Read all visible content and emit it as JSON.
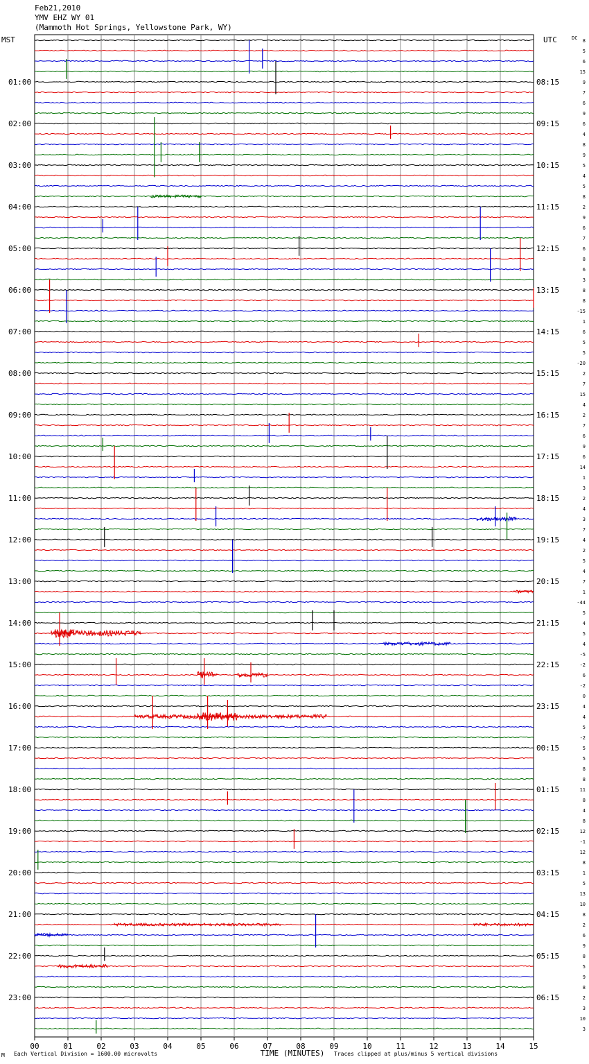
{
  "header": {
    "date": "Feb21,2010",
    "station": "YMV EHZ WY 01",
    "location": "(Mammoth Hot Springs, Yellowstone Park, WY)"
  },
  "colors": {
    "trace_cycle": [
      "#000000",
      "#e00000",
      "#0000d0",
      "#007000"
    ],
    "grid": "#8f8f8f"
  },
  "chart_data": {
    "type": "line",
    "title": "",
    "xlabel": "TIME (MINUTES)",
    "x_ticks": [
      "00",
      "01",
      "02",
      "03",
      "04",
      "05",
      "06",
      "07",
      "08",
      "09",
      "10",
      "11",
      "12",
      "13",
      "14",
      "15"
    ],
    "xlim": [
      0,
      15
    ],
    "left_axis_title": "MST",
    "right_axis_title": "UTC",
    "right_column_title": "DC",
    "left_hour_labels": [
      "01:00",
      "02:00",
      "03:00",
      "04:00",
      "05:00",
      "06:00",
      "07:00",
      "08:00",
      "09:00",
      "10:00",
      "11:00",
      "12:00",
      "13:00",
      "14:00",
      "15:00",
      "16:00",
      "17:00",
      "18:00",
      "19:00",
      "20:00",
      "21:00",
      "22:00",
      "23:00"
    ],
    "right_hour_labels": [
      "08:15",
      "09:15",
      "10:15",
      "11:15",
      "12:15",
      "13:15",
      "14:15",
      "15:15",
      "16:15",
      "17:15",
      "18:15",
      "19:15",
      "20:15",
      "21:15",
      "22:15",
      "23:15",
      "00:15",
      "01:15",
      "02:15",
      "03:15",
      "04:15",
      "05:15",
      "06:15"
    ],
    "dc_offsets": [
      "8",
      "5",
      "6",
      "15",
      "9",
      "7",
      "6",
      "9",
      "6",
      "4",
      "8",
      "9",
      "5",
      "4",
      "5",
      "8",
      "2",
      "9",
      "6",
      "7",
      "6",
      "8",
      "6",
      "3",
      "8",
      "8",
      "-15",
      "1",
      "6",
      "5",
      "5",
      "-20",
      "2",
      "7",
      "15",
      "4",
      "2",
      "7",
      "6",
      "9",
      "6",
      "14",
      "1",
      "3",
      "2",
      "4",
      "3",
      "7",
      "4",
      "2",
      "5",
      "4",
      "7",
      "1",
      "-44",
      "5",
      "4",
      "5",
      "4",
      "-5",
      "-2",
      "6",
      "-2",
      "0",
      "4",
      "4",
      "5",
      "-2",
      "5",
      "5",
      "8",
      "8",
      "11",
      "8",
      "4",
      "8",
      "12",
      "-1",
      "12",
      "8",
      "1",
      "5",
      "13",
      "10",
      "8",
      "2",
      "6",
      "9",
      "8",
      "5",
      "9",
      "8",
      "2",
      "3",
      "10",
      "3"
    ],
    "traces": 96,
    "minutes_per_trace": 15,
    "events": [
      {
        "row": 2,
        "minute": 6.85,
        "amp": 3
      },
      {
        "row": 3,
        "minute": 0.95,
        "amp": 3
      },
      {
        "row": 2,
        "minute": 6.45,
        "amp": 5
      },
      {
        "row": 4,
        "minute": 7.25,
        "amp": 5
      },
      {
        "row": 9,
        "minute": 10.7,
        "amp": 2
      },
      {
        "row": 11,
        "minute": 3.6,
        "amp": 9
      },
      {
        "row": 11,
        "minute": 3.8,
        "amp": 3
      },
      {
        "row": 11,
        "minute": 4.95,
        "amp": 3
      },
      {
        "row": 18,
        "minute": 2.05,
        "amp": 2
      },
      {
        "row": 18,
        "minute": 3.1,
        "amp": 5
      },
      {
        "row": 18,
        "minute": 13.4,
        "amp": 5
      },
      {
        "row": 20,
        "minute": 7.95,
        "amp": 3
      },
      {
        "row": 21,
        "minute": 4.0,
        "amp": 3
      },
      {
        "row": 21,
        "minute": 14.6,
        "amp": 5
      },
      {
        "row": 22,
        "minute": 3.65,
        "amp": 3
      },
      {
        "row": 22,
        "minute": 13.7,
        "amp": 5
      },
      {
        "row": 25,
        "minute": 0.45,
        "amp": 5
      },
      {
        "row": 25,
        "minute": 15.0,
        "amp": 3
      },
      {
        "row": 26,
        "minute": 0.95,
        "amp": 5
      },
      {
        "row": 29,
        "minute": 11.55,
        "amp": 2
      },
      {
        "row": 37,
        "minute": 7.65,
        "amp": 3
      },
      {
        "row": 38,
        "minute": 7.05,
        "amp": 3
      },
      {
        "row": 38,
        "minute": 10.1,
        "amp": 2
      },
      {
        "row": 39,
        "minute": 2.05,
        "amp": 2
      },
      {
        "row": 40,
        "minute": 10.6,
        "amp": 5
      },
      {
        "row": 41,
        "minute": 2.4,
        "amp": 5
      },
      {
        "row": 42,
        "minute": 4.8,
        "amp": 2
      },
      {
        "row": 44,
        "minute": 6.45,
        "amp": 3
      },
      {
        "row": 45,
        "minute": 10.6,
        "amp": 5
      },
      {
        "row": 45,
        "minute": 4.85,
        "amp": 5
      },
      {
        "row": 46,
        "minute": 5.45,
        "amp": 3
      },
      {
        "row": 46,
        "minute": 13.85,
        "amp": 3
      },
      {
        "row": 47,
        "minute": 14.2,
        "amp": 4
      },
      {
        "row": 48,
        "minute": 2.1,
        "amp": 3
      },
      {
        "row": 48,
        "minute": 11.95,
        "amp": 3
      },
      {
        "row": 50,
        "minute": 5.95,
        "amp": 5
      },
      {
        "row": 56,
        "minute": 8.35,
        "amp": 3
      },
      {
        "row": 56,
        "minute": 9.0,
        "amp": 3
      },
      {
        "row": 57,
        "minute": 0.75,
        "amp": 5
      },
      {
        "row": 61,
        "minute": 2.45,
        "amp": 4
      },
      {
        "row": 61,
        "minute": 5.1,
        "amp": 4
      },
      {
        "row": 61,
        "minute": 6.5,
        "amp": 3
      },
      {
        "row": 65,
        "minute": 5.2,
        "amp": 5
      },
      {
        "row": 65,
        "minute": 5.8,
        "amp": 4
      },
      {
        "row": 65,
        "minute": 3.55,
        "amp": 5
      },
      {
        "row": 73,
        "minute": 5.8,
        "amp": 2
      },
      {
        "row": 74,
        "minute": 9.6,
        "amp": 5
      },
      {
        "row": 75,
        "minute": 12.95,
        "amp": 5
      },
      {
        "row": 73,
        "minute": 13.85,
        "amp": 4
      },
      {
        "row": 77,
        "minute": 7.8,
        "amp": 3
      },
      {
        "row": 79,
        "minute": 0.1,
        "amp": 3
      },
      {
        "row": 86,
        "minute": 8.45,
        "amp": 5
      },
      {
        "row": 88,
        "minute": 2.1,
        "amp": 2
      },
      {
        "row": 95,
        "minute": 1.85,
        "amp": 2
      }
    ],
    "noise_bursts": [
      {
        "row": 57,
        "start": 0.5,
        "end": 3.2,
        "amp": 1.0
      },
      {
        "row": 57,
        "start": 0.6,
        "end": 1.2,
        "amp": 1.6
      },
      {
        "row": 61,
        "start": 4.9,
        "end": 5.5,
        "amp": 1.2
      },
      {
        "row": 61,
        "start": 6.1,
        "end": 7.0,
        "amp": 0.8
      },
      {
        "row": 65,
        "start": 3.0,
        "end": 8.8,
        "amp": 0.7
      },
      {
        "row": 65,
        "start": 4.9,
        "end": 6.1,
        "amp": 1.5
      },
      {
        "row": 58,
        "start": 10.5,
        "end": 12.5,
        "amp": 0.6
      },
      {
        "row": 53,
        "start": 14.4,
        "end": 15,
        "amp": 0.5
      },
      {
        "row": 85,
        "start": 2.4,
        "end": 7.4,
        "amp": 0.5
      },
      {
        "row": 85,
        "start": 13.2,
        "end": 15,
        "amp": 0.5
      },
      {
        "row": 86,
        "start": 0.0,
        "end": 1.0,
        "amp": 0.6
      },
      {
        "row": 89,
        "start": 0.7,
        "end": 2.2,
        "amp": 0.6
      },
      {
        "row": 46,
        "start": 13.3,
        "end": 14.5,
        "amp": 0.7
      },
      {
        "row": 15,
        "start": 3.5,
        "end": 5.0,
        "amp": 0.5
      }
    ]
  },
  "footer": {
    "left_note": "Each Vertical Division = 1600.00 microvolts",
    "clip_note": "Traces clipped at plus/minus 5 vertical divisions",
    "corner_mark": "M"
  }
}
